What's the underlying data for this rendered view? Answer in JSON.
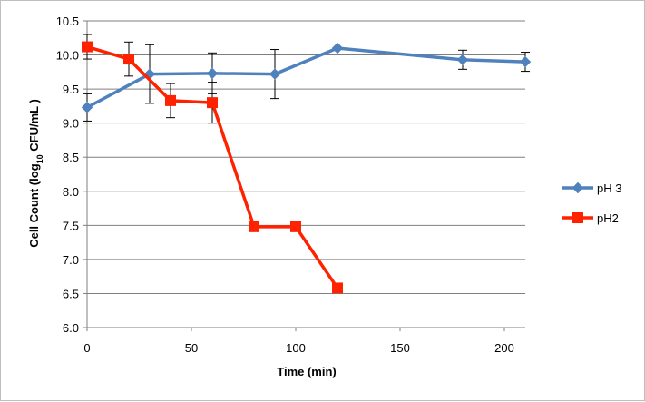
{
  "chart_data": {
    "type": "line",
    "title": "",
    "xlabel": "Time (min)",
    "ylabel": "Cell Count (log10 CFU/mL )",
    "ylabel_parts": {
      "pre": "Cell Count (log",
      "sub": "10",
      "post": " CFU/mL )"
    },
    "xlim": [
      0,
      210
    ],
    "ylim": [
      6.0,
      10.5
    ],
    "x_ticks": [
      0,
      50,
      100,
      150,
      200
    ],
    "y_ticks": [
      6.0,
      6.5,
      7.0,
      7.5,
      8.0,
      8.5,
      9.0,
      9.5,
      10.0,
      10.5
    ],
    "y_tick_labels": [
      "6.0",
      "6.5",
      "7.0",
      "7.5",
      "8.0",
      "8.5",
      "9.0",
      "9.5",
      "10.0",
      "10.5"
    ],
    "grid": "horizontal",
    "legend_position": "right",
    "series": [
      {
        "name": "pH 3",
        "color": "#4f81bd",
        "marker": "diamond",
        "x": [
          0,
          30,
          60,
          90,
          120,
          180,
          210
        ],
        "values": [
          9.23,
          9.72,
          9.73,
          9.72,
          10.1,
          9.93,
          9.9
        ],
        "err": [
          0.2,
          0.43,
          0.3,
          0.36,
          0.0,
          0.14,
          0.14
        ]
      },
      {
        "name": "pH2",
        "color": "#ff2200",
        "marker": "square",
        "x": [
          0,
          20,
          40,
          60,
          80,
          100,
          120
        ],
        "values": [
          10.12,
          9.94,
          9.33,
          9.3,
          7.48,
          7.48,
          6.58
        ],
        "err": [
          0.18,
          0.25,
          0.25,
          0.3,
          0.0,
          0.0,
          0.0
        ]
      }
    ]
  }
}
